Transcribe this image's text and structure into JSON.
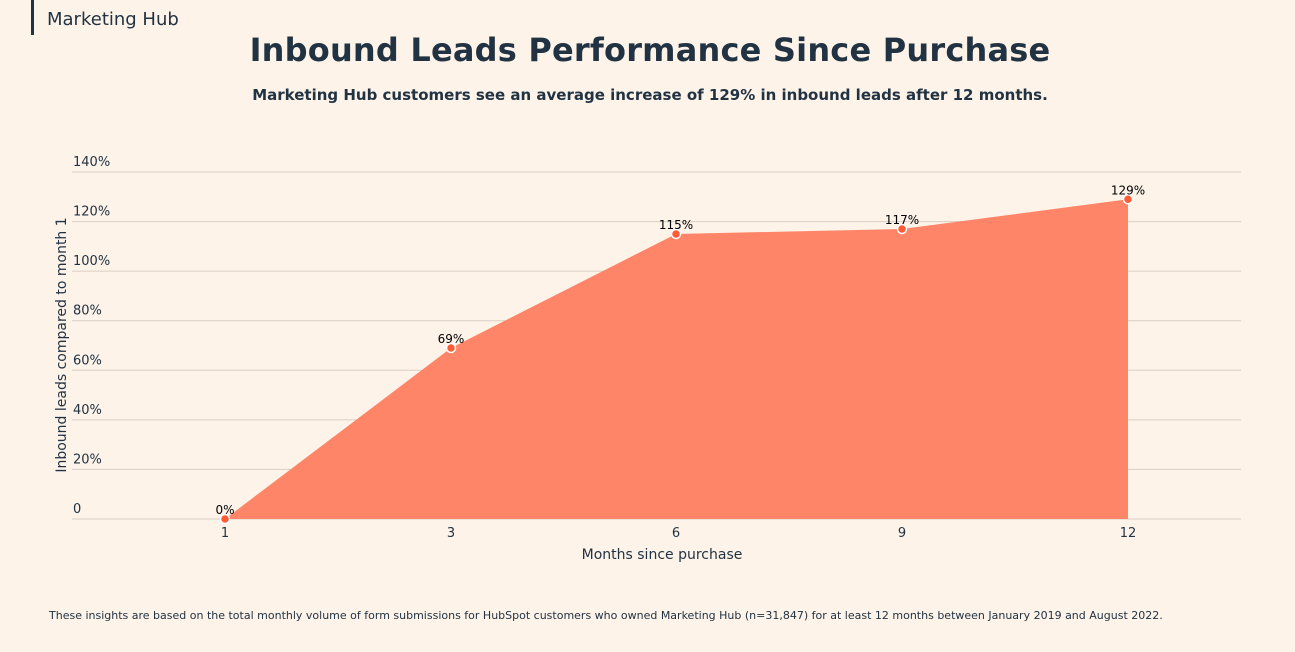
{
  "header": {
    "section_tag": "Marketing Hub"
  },
  "chart_data": {
    "type": "area",
    "title": "Inbound Leads Performance Since Purchase",
    "subtitle": "Marketing Hub customers see an average increase of 129% in inbound leads after 12 months.",
    "xlabel": "Months since purchase",
    "ylabel": "Inbound leads compared to month 1",
    "categories": [
      "1",
      "3",
      "6",
      "9",
      "12"
    ],
    "values": [
      0,
      69,
      115,
      117,
      129
    ],
    "data_labels": [
      "0%",
      "69%",
      "115%",
      "117%",
      "129%"
    ],
    "y_ticks": [
      0,
      20,
      40,
      60,
      80,
      100,
      120,
      140
    ],
    "y_tick_labels": [
      "0",
      "20%",
      "40%",
      "60%",
      "80%",
      "100%",
      "120%",
      "140%"
    ],
    "ylim": [
      0,
      140
    ],
    "grid": true,
    "fill_color": "#ff8568",
    "marker_color": "#ff5c35",
    "grid_color": "#d9cfc4"
  },
  "footnote": "These insights are based on the total monthly volume of form submissions for HubSpot customers who owned Marketing Hub (n=31,847) for at least 12 months between January 2019 and August 2022."
}
